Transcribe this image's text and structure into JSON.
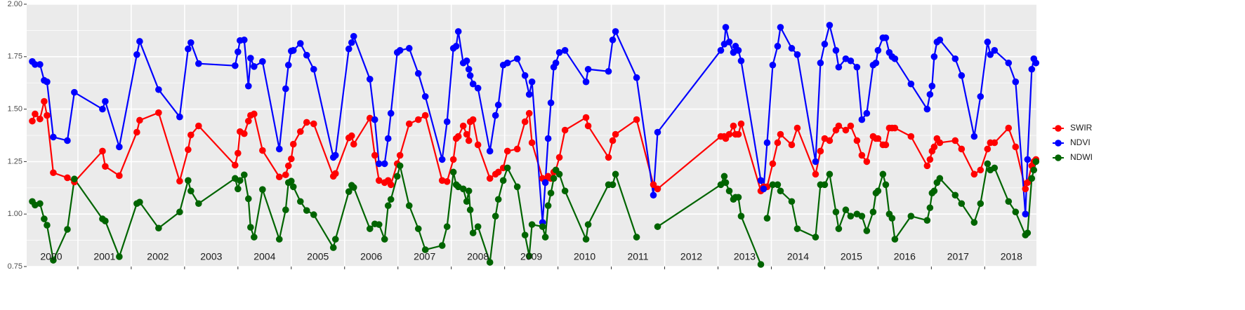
{
  "chart_data": {
    "type": "line",
    "x": [
      2000.145,
      2000.197,
      2000.289,
      2000.368,
      2000.421,
      2000.539,
      2000.803,
      2000.934,
      2001.461,
      2001.513,
      2001.776,
      2002.105,
      2002.158,
      2002.513,
      2002.908,
      2003.066,
      2003.118,
      2003.263,
      2003.947,
      2004.0,
      2004.039,
      2004.118,
      2004.197,
      2004.237,
      2004.303,
      2004.461,
      2004.776,
      2004.895,
      2004.947,
      2005.0,
      2005.039,
      2005.171,
      2005.289,
      2005.421,
      2005.789,
      2005.829,
      2006.079,
      2006.132,
      2006.171,
      2006.474,
      2006.566,
      2006.645,
      2006.75,
      2006.816,
      2006.868,
      2006.987,
      2007.039,
      2007.211,
      2007.382,
      2007.513,
      2007.829,
      2007.921,
      2008.039,
      2008.092,
      2008.132,
      2008.224,
      2008.289,
      2008.329,
      2008.355,
      2008.408,
      2008.5,
      2008.724,
      2008.829,
      2008.882,
      2008.974,
      2009.053,
      2009.237,
      2009.382,
      2009.461,
      2009.513,
      2009.711,
      2009.763,
      2009.816,
      2009.868,
      2009.921,
      2009.961,
      2010.026,
      2010.132,
      2010.526,
      2010.566,
      2010.947,
      2011.026,
      2011.079,
      2011.474,
      2011.789,
      2011.868,
      2013.053,
      2013.118,
      2013.145,
      2013.211,
      2013.289,
      2013.329,
      2013.382,
      2013.434,
      2013.803,
      2013.855,
      2013.921,
      2014.026,
      2014.118,
      2014.171,
      2014.382,
      2014.487,
      2014.829,
      2014.921,
      2015.0,
      2015.092,
      2015.211,
      2015.263,
      2015.395,
      2015.487,
      2015.605,
      2015.697,
      2015.789,
      2015.908,
      2015.961,
      2016.0,
      2016.092,
      2016.145,
      2016.211,
      2016.263,
      2016.316,
      2016.618,
      2016.921,
      2016.974,
      2017.013,
      2017.053,
      2017.105,
      2017.158,
      2017.447,
      2017.566,
      2017.803,
      2017.921,
      2018.053,
      2018.105,
      2018.184,
      2018.447,
      2018.579,
      2018.763,
      2018.803,
      2018.882,
      2018.921,
      2018.961
    ],
    "series": [
      {
        "name": "SWIR",
        "color": "#ff0000",
        "values": [
          1.443,
          1.477,
          1.453,
          1.537,
          1.47,
          1.197,
          1.173,
          1.153,
          1.3,
          1.227,
          1.183,
          1.39,
          1.447,
          1.483,
          1.157,
          1.307,
          1.377,
          1.42,
          1.233,
          1.29,
          1.393,
          1.383,
          1.443,
          1.47,
          1.477,
          1.303,
          1.177,
          1.187,
          1.23,
          1.263,
          1.333,
          1.393,
          1.437,
          1.43,
          1.18,
          1.193,
          1.363,
          1.373,
          1.333,
          1.457,
          1.28,
          1.16,
          1.15,
          1.16,
          1.14,
          1.24,
          1.28,
          1.43,
          1.45,
          1.47,
          1.16,
          1.155,
          1.26,
          1.36,
          1.37,
          1.42,
          1.38,
          1.35,
          1.44,
          1.45,
          1.33,
          1.17,
          1.19,
          1.2,
          1.22,
          1.3,
          1.31,
          1.44,
          1.48,
          1.34,
          1.17,
          1.16,
          1.18,
          1.17,
          1.2,
          1.21,
          1.27,
          1.4,
          1.46,
          1.42,
          1.27,
          1.35,
          1.38,
          1.45,
          1.14,
          1.12,
          1.37,
          1.37,
          1.36,
          1.38,
          1.42,
          1.38,
          1.38,
          1.43,
          1.11,
          1.13,
          1.13,
          1.24,
          1.34,
          1.38,
          1.33,
          1.41,
          1.19,
          1.3,
          1.36,
          1.35,
          1.4,
          1.42,
          1.4,
          1.42,
          1.35,
          1.28,
          1.25,
          1.37,
          1.36,
          1.36,
          1.33,
          1.33,
          1.41,
          1.41,
          1.41,
          1.37,
          1.23,
          1.26,
          1.3,
          1.32,
          1.36,
          1.34,
          1.35,
          1.31,
          1.19,
          1.21,
          1.31,
          1.34,
          1.34,
          1.41,
          1.32,
          1.12,
          1.15,
          1.23,
          1.25,
          1.26
        ]
      },
      {
        "name": "NDVI",
        "color": "#0000ff",
        "values": [
          1.727,
          1.713,
          1.713,
          1.637,
          1.63,
          1.367,
          1.35,
          1.58,
          1.5,
          1.537,
          1.32,
          1.76,
          1.823,
          1.593,
          1.463,
          1.787,
          1.817,
          1.717,
          1.707,
          1.773,
          1.827,
          1.83,
          1.61,
          1.743,
          1.703,
          1.727,
          1.31,
          1.597,
          1.71,
          1.777,
          1.78,
          1.813,
          1.757,
          1.69,
          1.27,
          1.28,
          1.787,
          1.817,
          1.847,
          1.643,
          1.45,
          1.24,
          1.24,
          1.36,
          1.48,
          1.77,
          1.78,
          1.79,
          1.67,
          1.56,
          1.26,
          1.44,
          1.79,
          1.8,
          1.87,
          1.72,
          1.73,
          1.69,
          1.66,
          1.62,
          1.6,
          1.3,
          1.47,
          1.52,
          1.71,
          1.72,
          1.74,
          1.66,
          1.57,
          1.63,
          0.96,
          1.15,
          1.36,
          1.53,
          1.7,
          1.72,
          1.77,
          1.78,
          1.63,
          1.69,
          1.68,
          1.83,
          1.87,
          1.65,
          1.09,
          1.39,
          1.78,
          1.81,
          1.89,
          1.82,
          1.77,
          1.8,
          1.78,
          1.73,
          1.16,
          1.12,
          1.34,
          1.71,
          1.8,
          1.89,
          1.79,
          1.76,
          1.25,
          1.72,
          1.81,
          1.9,
          1.78,
          1.7,
          1.74,
          1.73,
          1.7,
          1.45,
          1.48,
          1.71,
          1.72,
          1.78,
          1.84,
          1.84,
          1.77,
          1.75,
          1.74,
          1.62,
          1.5,
          1.57,
          1.61,
          1.75,
          1.82,
          1.83,
          1.74,
          1.66,
          1.37,
          1.56,
          1.82,
          1.76,
          1.78,
          1.72,
          1.63,
          1.0,
          1.26,
          1.69,
          1.74,
          1.72
        ]
      },
      {
        "name": "NDWI",
        "color": "#006400",
        "values": [
          1.06,
          1.043,
          1.05,
          0.977,
          0.947,
          0.78,
          0.927,
          1.167,
          0.977,
          0.967,
          0.797,
          1.05,
          1.057,
          0.933,
          1.01,
          1.16,
          1.11,
          1.05,
          1.17,
          1.12,
          1.16,
          1.187,
          1.073,
          0.937,
          0.89,
          1.117,
          0.88,
          1.02,
          1.15,
          1.157,
          1.13,
          1.06,
          1.017,
          0.997,
          0.84,
          0.88,
          1.107,
          1.137,
          1.127,
          0.93,
          0.953,
          0.95,
          0.88,
          1.04,
          1.07,
          1.18,
          1.23,
          1.04,
          0.93,
          0.83,
          0.85,
          0.94,
          1.2,
          1.14,
          1.13,
          1.12,
          1.06,
          1.11,
          1.02,
          0.91,
          0.94,
          0.77,
          0.99,
          1.07,
          1.16,
          1.22,
          1.13,
          0.9,
          0.8,
          0.95,
          0.94,
          0.89,
          1.04,
          1.1,
          1.17,
          1.21,
          1.19,
          1.11,
          0.88,
          0.95,
          1.14,
          1.14,
          1.19,
          0.89,
          null,
          0.94,
          1.14,
          1.18,
          1.15,
          1.11,
          1.07,
          1.08,
          1.08,
          0.99,
          0.76,
          null,
          0.98,
          1.14,
          1.14,
          1.11,
          1.06,
          0.93,
          0.89,
          1.14,
          1.14,
          1.19,
          1.01,
          0.93,
          1.02,
          0.99,
          1.0,
          0.99,
          0.92,
          1.01,
          1.1,
          1.11,
          1.19,
          1.14,
          1.0,
          0.98,
          0.88,
          0.99,
          0.97,
          1.03,
          1.1,
          1.11,
          1.15,
          1.17,
          1.09,
          1.05,
          0.96,
          1.05,
          1.24,
          1.21,
          1.22,
          1.06,
          1.01,
          0.9,
          0.91,
          1.17,
          1.21,
          1.25
        ]
      }
    ],
    "xlim": [
      2000.04,
      2018.97
    ],
    "xticks": [
      2001,
      2002,
      2003,
      2004,
      2005,
      2006,
      2007,
      2008,
      2009,
      2010,
      2011,
      2012,
      2013,
      2014,
      2015,
      2016,
      2017,
      2018
    ],
    "year_labels": [
      "2000",
      "2001",
      "2002",
      "2003",
      "2004",
      "2005",
      "2006",
      "2007",
      "2008",
      "2009",
      "2010",
      "2011",
      "2012",
      "2013",
      "2014",
      "2015",
      "2016",
      "2017",
      "2018"
    ],
    "ylim": [
      0.75,
      2.0
    ],
    "yticks": [
      0.75,
      {
        "value": 1.0,
        "label": "1.00"
      },
      1.25,
      {
        "value": 1.5,
        "label": "1.50"
      },
      1.75,
      {
        "value": 2.0,
        "label": "2.00"
      }
    ],
    "grid": true,
    "legend": "right"
  }
}
